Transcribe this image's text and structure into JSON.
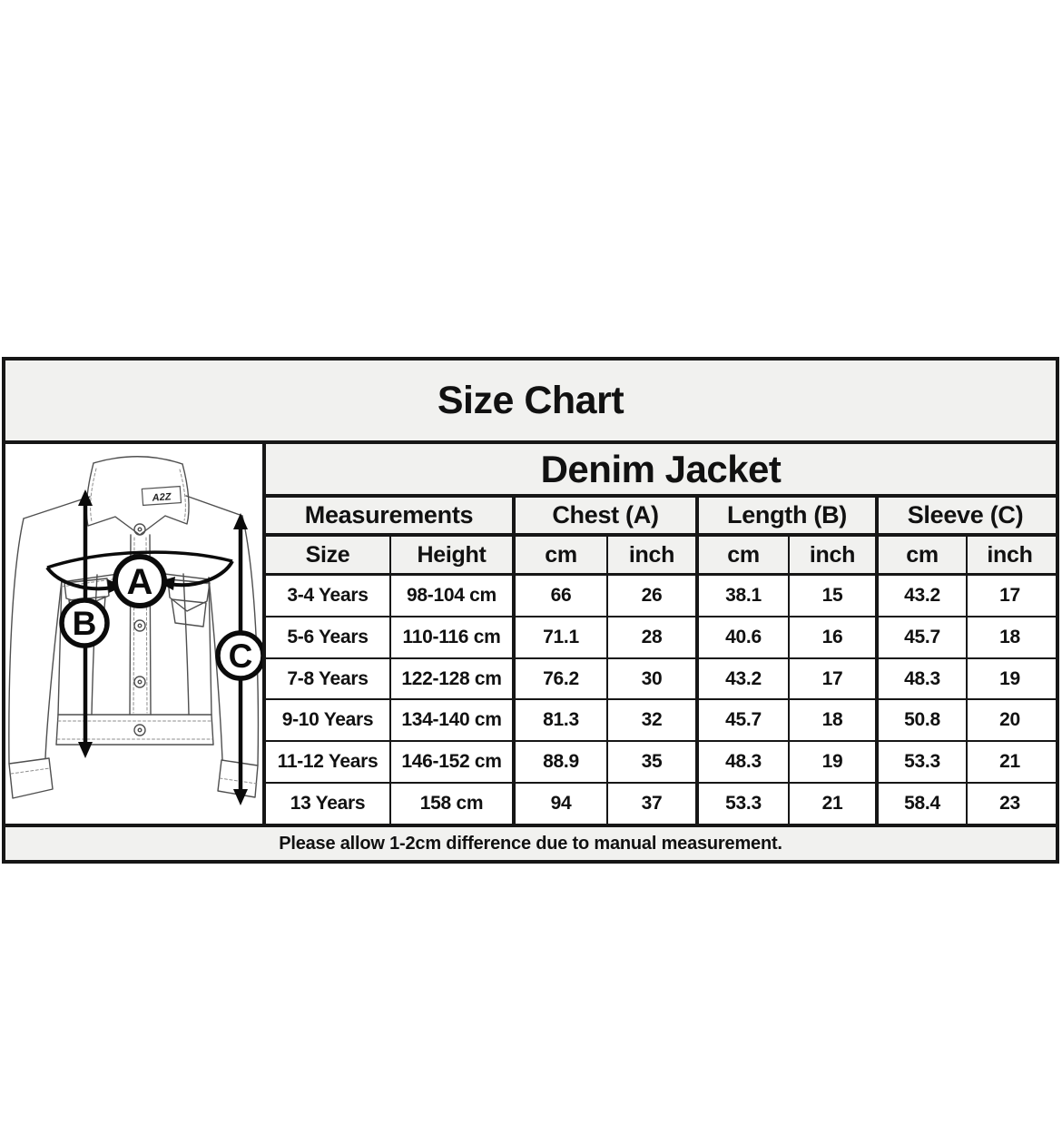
{
  "chart_data": {
    "type": "table",
    "title": "Size Chart",
    "subtitle": "Denim Jacket",
    "group_headers": [
      {
        "label": "Measurements",
        "span": 2
      },
      {
        "label": "Chest (A)",
        "span": 2
      },
      {
        "label": "Length (B)",
        "span": 2
      },
      {
        "label": "Sleeve (C)",
        "span": 2
      }
    ],
    "columns": [
      "Size",
      "Height",
      "cm",
      "inch",
      "cm",
      "inch",
      "cm",
      "inch"
    ],
    "rows": [
      [
        "3-4 Years",
        "98-104 cm",
        "66",
        "26",
        "38.1",
        "15",
        "43.2",
        "17"
      ],
      [
        "5-6 Years",
        "110-116 cm",
        "71.1",
        "28",
        "40.6",
        "16",
        "45.7",
        "18"
      ],
      [
        "7-8 Years",
        "122-128 cm",
        "76.2",
        "30",
        "43.2",
        "17",
        "48.3",
        "19"
      ],
      [
        "9-10 Years",
        "134-140 cm",
        "81.3",
        "32",
        "45.7",
        "18",
        "50.8",
        "20"
      ],
      [
        "11-12 Years",
        "146-152 cm",
        "88.9",
        "35",
        "48.3",
        "19",
        "53.3",
        "21"
      ],
      [
        "13 Years",
        "158 cm",
        "94",
        "37",
        "53.3",
        "21",
        "58.4",
        "23"
      ]
    ],
    "footnote": "Please allow 1-2cm difference due to manual measurement."
  },
  "illustration": {
    "brand_tag": "A2Z",
    "labels": [
      "A",
      "B",
      "C"
    ]
  },
  "colors": {
    "header_bg": "#f1f1ef",
    "border": "#161616",
    "text": "#111111",
    "row_bg": "#ffffff"
  }
}
